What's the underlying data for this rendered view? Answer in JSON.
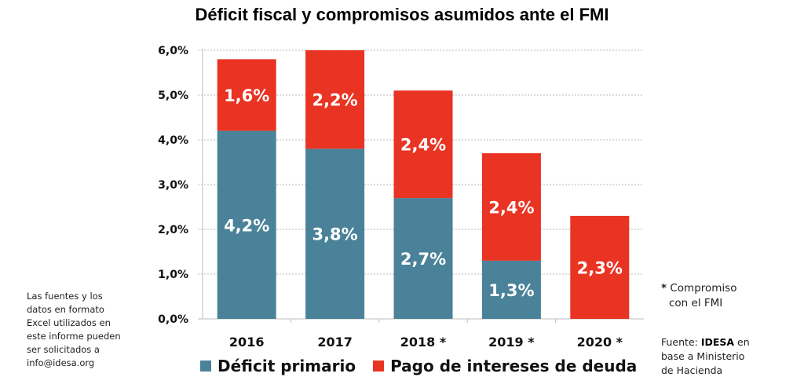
{
  "chart_data": {
    "type": "bar",
    "stacked": true,
    "title": "Déficit fiscal y compromisos asumidos ante el FMI",
    "xlabel": "",
    "ylabel": "",
    "categories": [
      "2016",
      "2017",
      "2018 *",
      "2019 *",
      "2020 *"
    ],
    "series": [
      {
        "name": "Déficit primario",
        "color": "#4a8299",
        "values": [
          4.2,
          3.8,
          2.7,
          1.3,
          0.0
        ],
        "labels": [
          "4,2%",
          "3,8%",
          "2,7%",
          "1,3%",
          ""
        ]
      },
      {
        "name": "Pago de intereses de deuda",
        "color": "#e93323",
        "values": [
          1.6,
          2.2,
          2.4,
          2.4,
          2.3
        ],
        "labels": [
          "1,6%",
          "2,2%",
          "2,4%",
          "2,4%",
          "2,3%"
        ]
      }
    ],
    "ylim": [
      0,
      6
    ],
    "yticks": [
      0,
      1,
      2,
      3,
      4,
      5,
      6
    ],
    "ytick_labels": [
      "0,0%",
      "1,0%",
      "2,0%",
      "3,0%",
      "4,0%",
      "5,0%",
      "6,0%"
    ],
    "grid": true,
    "legend_position": "bottom"
  },
  "notes": {
    "left_lines": [
      "Las fuentes y los",
      "datos en formato",
      "Excel utilizados en",
      "este informe pueden",
      "ser solicitados a",
      "info@idesa.org"
    ],
    "footnote_star": "*",
    "footnote_line1": "Compromiso",
    "footnote_line2": "con el FMI",
    "source_prefix": "Fuente: ",
    "source_org": "IDESA",
    "source_suffix": " en",
    "source_line2": "base a Ministerio",
    "source_line3": "de Hacienda"
  }
}
